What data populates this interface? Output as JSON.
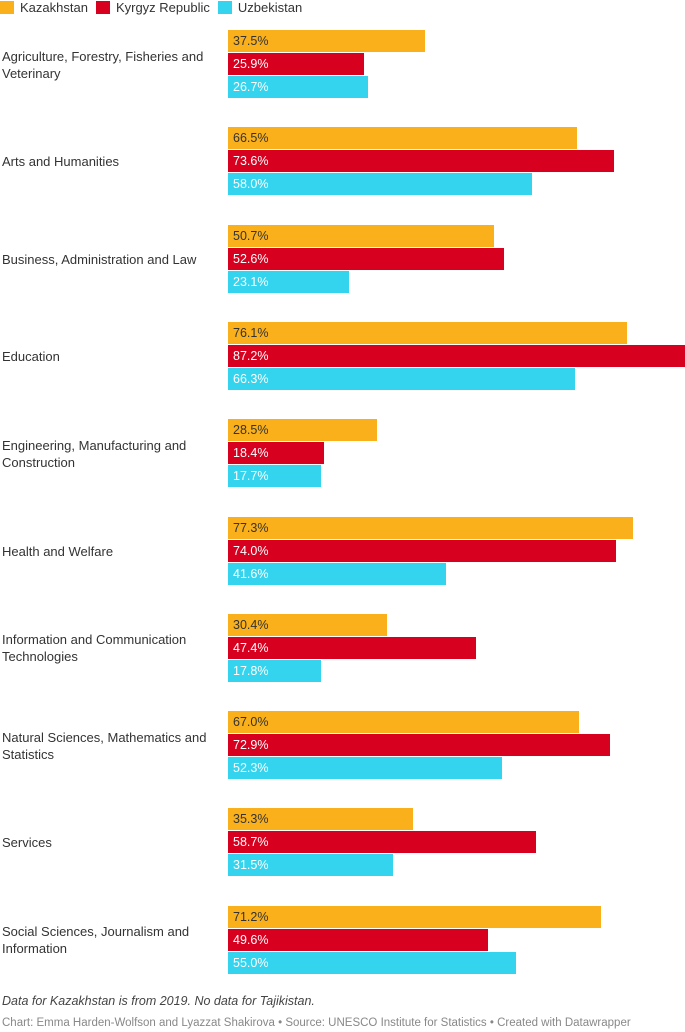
{
  "chart_data": {
    "type": "bar",
    "orientation": "horizontal",
    "legend_position": "top-left",
    "grid": false,
    "xlim": [
      0,
      87.2
    ],
    "categories": [
      "Agriculture, Forestry, Fisheries and Veterinary",
      "Arts and Humanities",
      "Business, Administration and Law",
      "Education",
      "Engineering, Manufacturing and Construction",
      "Health and Welfare",
      "Information and Communication Technologies",
      "Natural Sciences, Mathematics and Statistics",
      "Services",
      "Social Sciences, Journalism and Information"
    ],
    "series": [
      {
        "name": "Kazakhstan",
        "color": "#FAB01A",
        "label_color": "#333333",
        "values": [
          37.5,
          66.5,
          50.7,
          76.1,
          28.5,
          77.3,
          30.4,
          67.0,
          35.3,
          71.2
        ],
        "labels": [
          "37.5%",
          "66.5%",
          "50.7%",
          "76.1%",
          "28.5%",
          "77.3%",
          "30.4%",
          "67.0%",
          "35.3%",
          "71.2%"
        ]
      },
      {
        "name": "Kyrgyz Republic",
        "color": "#D7001F",
        "label_color": "#ffffff",
        "values": [
          25.9,
          73.6,
          52.6,
          87.2,
          18.4,
          74.0,
          47.4,
          72.9,
          58.7,
          49.6
        ],
        "labels": [
          "25.9%",
          "73.6%",
          "52.6%",
          "87.2%",
          "18.4%",
          "74.0%",
          "47.4%",
          "72.9%",
          "58.7%",
          "49.6%"
        ]
      },
      {
        "name": "Uzbekistan",
        "color": "#34D4EE",
        "label_color": "#ffffff",
        "values": [
          26.7,
          58.0,
          23.1,
          66.3,
          17.7,
          41.6,
          17.8,
          52.3,
          31.5,
          55.0
        ],
        "labels": [
          "26.7%",
          "58.0%",
          "23.1%",
          "66.3%",
          "17.7%",
          "41.6%",
          "17.8%",
          "52.3%",
          "31.5%",
          "55.0%"
        ]
      }
    ]
  },
  "notes": {
    "footnote": "Data for Kazakhstan is from 2019. No data for Tajikistan.",
    "credit": "Chart: Emma Harden-Wolfson and Lyazzat Shakirova • Source: UNESCO Institute for Statistics • Created with Datawrapper"
  }
}
